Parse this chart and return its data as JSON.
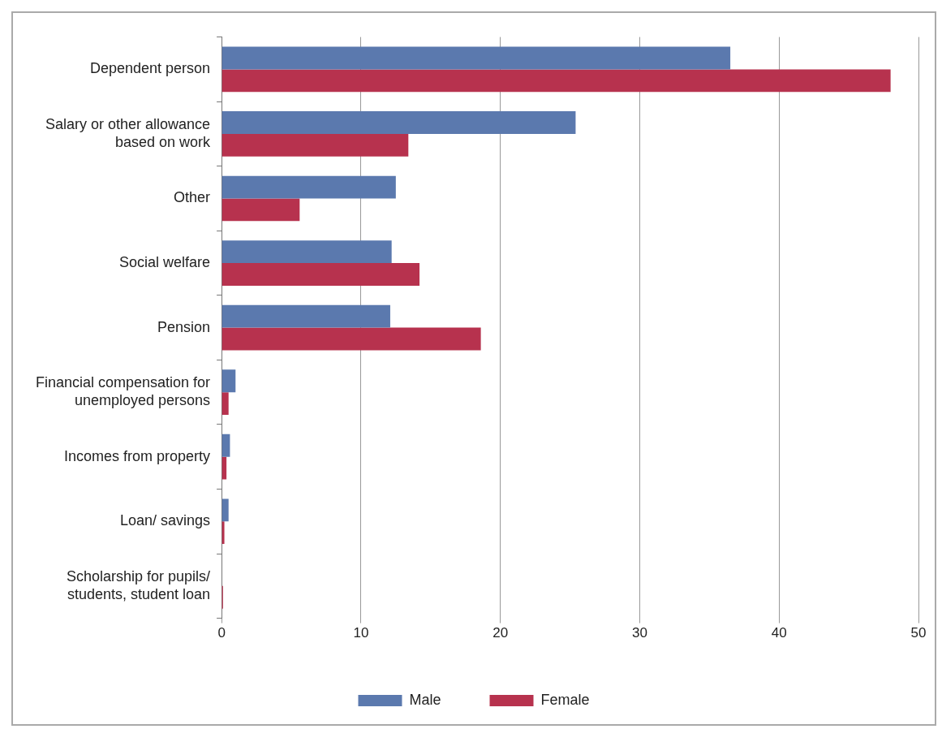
{
  "chart_data": {
    "type": "bar",
    "orientation": "horizontal",
    "categories": [
      "Dependent person",
      [
        "Salary or other allowance",
        "based on work"
      ],
      "Other",
      "Social welfare",
      "Pension",
      [
        "Financial compensation for",
        "unemployed persons"
      ],
      "Incomes from property",
      "Loan/ savings",
      [
        "Scholarship for pupils/",
        "students, student loan"
      ]
    ],
    "series": [
      {
        "name": "Male",
        "color": "#5b79ae",
        "values": [
          36.5,
          25.4,
          12.5,
          12.2,
          12.1,
          1.0,
          0.6,
          0.5,
          null
        ]
      },
      {
        "name": "Female",
        "color": "#b7324e",
        "values": [
          48.0,
          13.4,
          5.6,
          14.2,
          18.6,
          0.5,
          0.35,
          0.2,
          0.1
        ]
      }
    ],
    "xlim": [
      0,
      50
    ],
    "xticks": [
      0,
      10,
      20,
      30,
      40,
      50
    ],
    "grid": "x",
    "legend": "bottom"
  }
}
